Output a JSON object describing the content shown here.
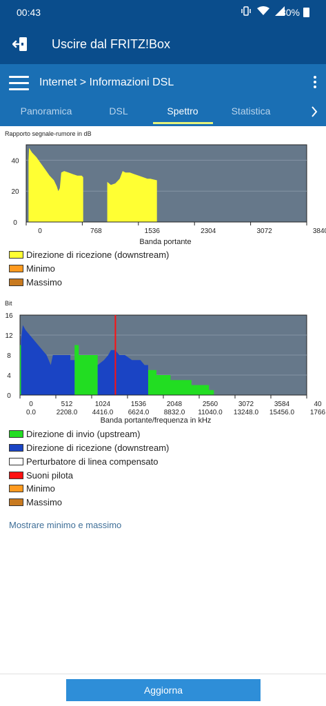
{
  "statusbar": {
    "time": "00:43",
    "battery": "80%"
  },
  "header": {
    "exit_label": "Uscire dal FRITZ!Box"
  },
  "breadcrumb": {
    "root": "Internet",
    "separator": ">",
    "current": "Informazioni DSL"
  },
  "tabs": [
    {
      "label": "Panoramica",
      "active": false
    },
    {
      "label": "DSL",
      "active": false
    },
    {
      "label": "Spettro",
      "active": true
    },
    {
      "label": "Statistica",
      "active": false
    }
  ],
  "chart_data": [
    {
      "type": "area",
      "title": "Rapporto segnale-rumore in dB",
      "xlabel": "Banda portante",
      "ylabel": "",
      "xlim": [
        0,
        3840
      ],
      "ylim": [
        0,
        50
      ],
      "x_ticks": [
        "0",
        "768",
        "1536",
        "2304",
        "3072",
        "3840"
      ],
      "y_ticks": [
        "0",
        "20",
        "40"
      ],
      "grid": true,
      "series": [
        {
          "name": "Direzione di ricezione (downstream)",
          "color": "#ffff33",
          "points": [
            [
              32,
              0
            ],
            [
              32,
              40
            ],
            [
              40,
              48
            ],
            [
              80,
              45
            ],
            [
              140,
              42
            ],
            [
              200,
              38
            ],
            [
              260,
              34
            ],
            [
              320,
              30
            ],
            [
              380,
              27
            ],
            [
              420,
              23
            ],
            [
              440,
              20
            ],
            [
              460,
              22
            ],
            [
              480,
              32
            ],
            [
              520,
              33
            ],
            [
              580,
              32
            ],
            [
              640,
              31
            ],
            [
              700,
              30
            ],
            [
              760,
              30
            ],
            [
              780,
              29
            ],
            [
              780,
              0
            ],
            [
              1110,
              0
            ],
            [
              1110,
              26
            ],
            [
              1160,
              24
            ],
            [
              1220,
              25
            ],
            [
              1280,
              28
            ],
            [
              1320,
              33
            ],
            [
              1360,
              32
            ],
            [
              1420,
              32
            ],
            [
              1480,
              31
            ],
            [
              1540,
              30
            ],
            [
              1600,
              29
            ],
            [
              1660,
              28
            ],
            [
              1700,
              28
            ],
            [
              1790,
              27
            ],
            [
              1790,
              0
            ]
          ]
        },
        {
          "name": "Minimo",
          "color": "#ff9a1f",
          "points": []
        },
        {
          "name": "Massimo",
          "color": "#c87a20",
          "points": []
        }
      ]
    },
    {
      "type": "bar",
      "title": "Bit",
      "xlabel": "Banda portante/frequenza in kHz",
      "ylabel": "",
      "xlim": [
        0,
        4096
      ],
      "ylim": [
        0,
        16
      ],
      "x_ticks": [
        "0",
        "512",
        "1024",
        "1536",
        "2048",
        "2560",
        "3072",
        "3584",
        "40"
      ],
      "x_freq_ticks": [
        "0.0",
        "2208.0",
        "4416.0",
        "6624.0",
        "8832.0",
        "11040.0",
        "13248.0",
        "15456.0",
        "1766"
      ],
      "y_ticks": [
        "0",
        "4",
        "8",
        "12",
        "16"
      ],
      "grid": true,
      "series": [
        {
          "name": "Direzione di invio (upstream)",
          "color": "#22dd22",
          "points": [
            [
              0,
              0
            ],
            [
              0,
              10
            ],
            [
              15,
              10
            ],
            [
              15,
              0
            ],
            [
              780,
              0
            ],
            [
              780,
              10
            ],
            [
              840,
              10
            ],
            [
              840,
              8
            ],
            [
              1110,
              8
            ],
            [
              1110,
              0
            ],
            [
              1830,
              0
            ],
            [
              1830,
              5
            ],
            [
              1950,
              5
            ],
            [
              1950,
              4
            ],
            [
              2150,
              4
            ],
            [
              2150,
              3
            ],
            [
              2450,
              3
            ],
            [
              2450,
              2
            ],
            [
              2700,
              2
            ],
            [
              2700,
              1
            ],
            [
              2770,
              1
            ],
            [
              2770,
              0
            ]
          ]
        },
        {
          "name": "Direzione di ricezione (downstream)",
          "color": "#1a44c4",
          "points": [
            [
              15,
              0
            ],
            [
              15,
              11
            ],
            [
              40,
              14
            ],
            [
              80,
              13
            ],
            [
              140,
              12
            ],
            [
              200,
              11
            ],
            [
              260,
              10
            ],
            [
              320,
              9
            ],
            [
              380,
              8
            ],
            [
              440,
              6
            ],
            [
              470,
              8
            ],
            [
              720,
              8
            ],
            [
              720,
              7
            ],
            [
              780,
              7
            ],
            [
              780,
              0
            ],
            [
              1110,
              0
            ],
            [
              1110,
              6
            ],
            [
              1200,
              7
            ],
            [
              1260,
              8
            ],
            [
              1300,
              9
            ],
            [
              1360,
              9
            ],
            [
              1420,
              8
            ],
            [
              1500,
              8
            ],
            [
              1600,
              7
            ],
            [
              1720,
              7
            ],
            [
              1780,
              6
            ],
            [
              1830,
              6
            ],
            [
              1830,
              0
            ]
          ]
        },
        {
          "name": "Perturbatore di linea compensato",
          "color": "#ffffff",
          "points": []
        },
        {
          "name": "Suoni pilota",
          "color": "#ff1010",
          "x": 1363
        },
        {
          "name": "Minimo",
          "color": "#ff9a1f",
          "points": []
        },
        {
          "name": "Massimo",
          "color": "#c87a20",
          "points": []
        }
      ]
    }
  ],
  "link_minmax": "Mostrare minimo e massimo",
  "refresh_button": "Aggiorna"
}
